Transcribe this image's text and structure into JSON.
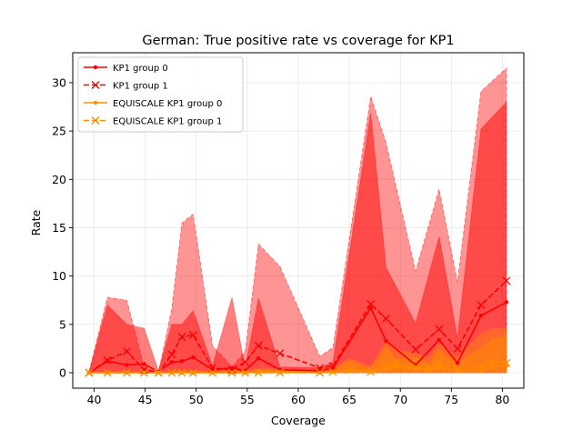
{
  "chart_data": {
    "type": "line",
    "title": "German: True positive rate vs coverage for KP1",
    "xlabel": "Coverage",
    "ylabel": "Rate",
    "xlim": [
      37.9,
      82.1
    ],
    "ylim": [
      -1.6,
      33.1
    ],
    "xticks": [
      40,
      45,
      50,
      55,
      60,
      65,
      70,
      75,
      80
    ],
    "yticks": [
      0,
      5,
      10,
      15,
      20,
      25,
      30
    ],
    "grid": true,
    "legend_position": "top-left",
    "colors": {
      "kp1": "#ff0000",
      "equiscale": "#ff8c00"
    },
    "series": [
      {
        "name": "KP1 group 0",
        "color": "#ff0000",
        "linestyle": "solid",
        "marker": "dot",
        "x": [
          39.5,
          41.3,
          43.2,
          44.9,
          46.3,
          47.6,
          48.6,
          49.7,
          51.6,
          53.5,
          54.8,
          56.1,
          58.2,
          62.1,
          63.4,
          67.1,
          68.6,
          71.5,
          73.8,
          75.6,
          77.9,
          80.4
        ],
        "y": [
          0.0,
          1.2,
          0.8,
          0.9,
          0.1,
          1.1,
          1.2,
          1.6,
          0.3,
          0.5,
          0.2,
          1.5,
          0.3,
          0.2,
          0.5,
          6.7,
          3.3,
          0.8,
          3.4,
          1.0,
          5.9,
          7.3
        ],
        "band_low": [
          0.0,
          0.0,
          0.0,
          0.0,
          0.0,
          0.0,
          0.0,
          0.0,
          0.0,
          0.0,
          0.0,
          0.0,
          0.0,
          0.0,
          0.0,
          0.0,
          0.0,
          0.0,
          0.0,
          0.0,
          0.0,
          0.0
        ],
        "band_high": [
          0.1,
          7.0,
          5.0,
          4.6,
          0.2,
          5.0,
          5.0,
          6.4,
          0.7,
          7.8,
          0.5,
          7.7,
          0.6,
          0.5,
          1.1,
          26.9,
          10.9,
          5.1,
          14.1,
          3.6,
          25.2,
          28.0
        ]
      },
      {
        "name": "KP1 group 1",
        "color": "#ff0000",
        "linestyle": "dashed",
        "marker": "x",
        "x": [
          39.5,
          41.3,
          43.2,
          44.9,
          46.3,
          47.6,
          48.6,
          49.7,
          51.6,
          53.5,
          54.8,
          56.1,
          58.2,
          62.1,
          63.4,
          67.1,
          68.6,
          71.5,
          73.8,
          75.6,
          77.9,
          80.4
        ],
        "y": [
          0.0,
          1.3,
          2.2,
          0.3,
          0.0,
          1.9,
          3.7,
          3.9,
          0.5,
          0.3,
          1.1,
          2.8,
          2.0,
          0.5,
          0.7,
          7.1,
          5.6,
          2.4,
          4.5,
          2.5,
          7.0,
          9.5
        ],
        "band_low": [
          0.0,
          0.0,
          0.0,
          0.0,
          0.0,
          0.0,
          0.0,
          0.0,
          0.0,
          0.0,
          0.0,
          0.0,
          0.0,
          0.0,
          0.0,
          0.0,
          0.0,
          0.0,
          0.0,
          0.0,
          0.0,
          0.0
        ],
        "band_high": [
          0.1,
          7.8,
          7.5,
          0.6,
          0.0,
          6.6,
          15.5,
          16.4,
          2.8,
          0.6,
          2.2,
          13.3,
          11.0,
          1.7,
          2.6,
          28.6,
          23.8,
          10.5,
          19.0,
          9.4,
          29.1,
          31.5
        ]
      },
      {
        "name": "EQUISCALE KP1 group 0",
        "color": "#ff8c00",
        "linestyle": "solid",
        "marker": "dot",
        "x": [
          39.5,
          41.3,
          43.2,
          44.9,
          46.3,
          47.6,
          48.6,
          49.7,
          51.6,
          53.5,
          54.8,
          56.1,
          58.2,
          62.1,
          63.4,
          65.0,
          67.1,
          68.6,
          69.6,
          71.5,
          72.8,
          73.8,
          75.6,
          77.9,
          79.0,
          80.4
        ],
        "y": [
          0.0,
          0.0,
          0.0,
          0.0,
          0.0,
          0.0,
          0.0,
          0.0,
          0.0,
          0.0,
          0.0,
          0.1,
          0.1,
          0.0,
          0.1,
          0.2,
          0.1,
          0.3,
          0.6,
          0.4,
          0.3,
          0.6,
          0.2,
          0.2,
          0.6,
          0.7
        ],
        "band_low": [
          0.0,
          0.0,
          0.0,
          0.0,
          0.0,
          0.0,
          0.0,
          0.0,
          0.0,
          0.0,
          0.0,
          0.0,
          0.0,
          0.0,
          0.0,
          0.0,
          0.0,
          0.0,
          0.0,
          0.0,
          0.0,
          0.0,
          0.0,
          0.0,
          0.0,
          0.0
        ],
        "band_high": [
          0.0,
          0.1,
          0.1,
          0.1,
          0.0,
          0.1,
          0.2,
          0.2,
          0.1,
          0.2,
          0.1,
          0.4,
          0.4,
          0.1,
          0.3,
          1.2,
          0.5,
          2.6,
          1.4,
          1.6,
          0.9,
          2.4,
          1.0,
          2.6,
          3.5,
          3.8
        ]
      },
      {
        "name": "EQUISCALE KP1 group 1",
        "color": "#ff8c00",
        "linestyle": "dashed",
        "marker": "x",
        "x": [
          39.5,
          41.3,
          43.2,
          44.9,
          46.3,
          47.6,
          48.6,
          49.7,
          51.6,
          53.5,
          54.8,
          56.1,
          58.2,
          62.1,
          63.4,
          65.0,
          67.1,
          68.6,
          69.6,
          71.5,
          72.8,
          73.8,
          75.6,
          77.9,
          79.0,
          80.4
        ],
        "y": [
          0.0,
          0.0,
          0.0,
          0.0,
          0.0,
          0.0,
          0.0,
          0.0,
          0.0,
          0.0,
          0.0,
          0.0,
          0.0,
          0.0,
          0.1,
          0.3,
          0.1,
          0.8,
          0.9,
          0.6,
          0.5,
          1.0,
          0.4,
          0.6,
          1.1,
          1.0
        ],
        "band_low": [
          0.0,
          0.0,
          0.0,
          0.0,
          0.0,
          0.0,
          0.0,
          0.0,
          0.0,
          0.0,
          0.0,
          0.0,
          0.0,
          0.0,
          0.0,
          0.0,
          0.0,
          0.0,
          0.0,
          0.0,
          0.0,
          0.0,
          0.0,
          0.0,
          0.0,
          0.0
        ],
        "band_high": [
          0.0,
          0.1,
          0.1,
          0.1,
          0.0,
          0.1,
          0.1,
          0.1,
          0.1,
          0.1,
          0.1,
          0.2,
          0.2,
          0.1,
          0.4,
          1.5,
          0.6,
          3.2,
          2.4,
          2.0,
          1.6,
          3.0,
          1.6,
          4.0,
          4.6,
          4.5
        ]
      }
    ]
  }
}
